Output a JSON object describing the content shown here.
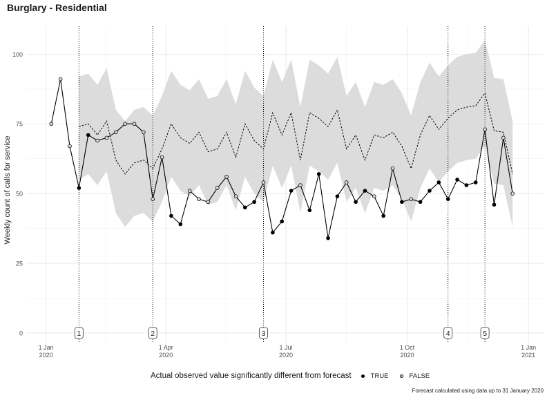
{
  "chart_data": {
    "type": "line",
    "title": "Burglary - Residential",
    "ylabel": "Weekly count of calls for service",
    "xlabel": "",
    "ylim": [
      0,
      110
    ],
    "y_ticks": [
      0,
      25,
      50,
      75,
      100
    ],
    "x_ticks": [
      {
        "date": "2020-01-01",
        "label1": "1 Jan",
        "label2": "2020"
      },
      {
        "date": "2020-04-01",
        "label1": "1 Apr",
        "label2": "2020"
      },
      {
        "date": "2020-07-01",
        "label1": "1 Jul",
        "label2": "2020"
      },
      {
        "date": "2020-10-01",
        "label1": "1 Oct",
        "label2": "2020"
      },
      {
        "date": "2021-01-01",
        "label1": "1 Jan",
        "label2": "2021"
      }
    ],
    "xlim": [
      "2019-12-17",
      "2021-01-13"
    ],
    "grid": true,
    "actual": {
      "dates": [
        "2020-01-05",
        "2020-01-12",
        "2020-01-19",
        "2020-01-26",
        "2020-02-02",
        "2020-02-09",
        "2020-02-16",
        "2020-02-23",
        "2020-03-01",
        "2020-03-08",
        "2020-03-15",
        "2020-03-22",
        "2020-03-29",
        "2020-04-05",
        "2020-04-12",
        "2020-04-19",
        "2020-04-26",
        "2020-05-03",
        "2020-05-10",
        "2020-05-17",
        "2020-05-24",
        "2020-05-31",
        "2020-06-07",
        "2020-06-14",
        "2020-06-21",
        "2020-06-28",
        "2020-07-05",
        "2020-07-12",
        "2020-07-19",
        "2020-07-26",
        "2020-08-02",
        "2020-08-09",
        "2020-08-16",
        "2020-08-23",
        "2020-08-30",
        "2020-09-06",
        "2020-09-13",
        "2020-09-20",
        "2020-09-27",
        "2020-10-04",
        "2020-10-11",
        "2020-10-18",
        "2020-10-25",
        "2020-11-01",
        "2020-11-08",
        "2020-11-15",
        "2020-11-22",
        "2020-11-29",
        "2020-12-06",
        "2020-12-13",
        "2020-12-20"
      ],
      "values": [
        75,
        91,
        67,
        52,
        71,
        69,
        70,
        72,
        75,
        75,
        72,
        48,
        63,
        42,
        39,
        51,
        48,
        47,
        52,
        56,
        49,
        45,
        47,
        54,
        36,
        40,
        51,
        53,
        44,
        57,
        34,
        49,
        54,
        47,
        51,
        49,
        42,
        59,
        47,
        48,
        47,
        51,
        54,
        48,
        55,
        53,
        54,
        73,
        46,
        70,
        50
      ],
      "significant": [
        false,
        false,
        false,
        true,
        true,
        false,
        false,
        false,
        false,
        false,
        false,
        false,
        false,
        true,
        true,
        false,
        false,
        false,
        false,
        false,
        false,
        true,
        true,
        false,
        true,
        true,
        true,
        false,
        true,
        true,
        true,
        true,
        false,
        true,
        true,
        false,
        true,
        false,
        true,
        false,
        true,
        true,
        true,
        true,
        true,
        true,
        true,
        false,
        true,
        false,
        false
      ]
    },
    "forecast": {
      "dates": [
        "2020-01-26",
        "2020-02-02",
        "2020-02-09",
        "2020-02-16",
        "2020-02-23",
        "2020-03-01",
        "2020-03-08",
        "2020-03-15",
        "2020-03-22",
        "2020-03-29",
        "2020-04-05",
        "2020-04-12",
        "2020-04-19",
        "2020-04-26",
        "2020-05-03",
        "2020-05-10",
        "2020-05-17",
        "2020-05-24",
        "2020-05-31",
        "2020-06-07",
        "2020-06-14",
        "2020-06-21",
        "2020-06-28",
        "2020-07-05",
        "2020-07-12",
        "2020-07-19",
        "2020-07-26",
        "2020-08-02",
        "2020-08-09",
        "2020-08-16",
        "2020-08-23",
        "2020-08-30",
        "2020-09-06",
        "2020-09-13",
        "2020-09-20",
        "2020-09-27",
        "2020-10-04",
        "2020-10-11",
        "2020-10-18",
        "2020-10-25",
        "2020-11-01",
        "2020-11-08",
        "2020-11-15",
        "2020-11-22",
        "2020-11-29",
        "2020-12-06",
        "2020-12-13",
        "2020-12-20"
      ],
      "values": [
        74,
        75,
        71,
        76,
        62,
        57,
        61,
        62,
        59,
        66,
        75,
        70,
        68,
        72,
        65,
        66,
        72,
        63,
        75,
        69,
        66,
        79,
        71,
        79,
        62,
        79,
        77,
        74,
        80,
        66,
        71,
        62,
        71,
        70,
        72,
        67,
        59,
        71,
        78,
        73,
        77,
        80,
        81,
        81.5,
        86,
        72.5,
        72,
        57
      ],
      "lower": [
        55,
        57,
        53,
        58,
        43,
        38,
        42,
        43,
        40,
        47,
        56,
        51,
        49,
        53,
        46,
        47,
        53,
        44,
        56,
        50,
        47,
        60,
        52,
        60,
        43,
        60,
        58,
        55,
        61,
        47,
        52,
        43,
        52,
        51,
        53,
        48,
        40,
        52,
        59,
        54,
        58,
        61,
        62,
        62.5,
        67,
        53.5,
        53,
        38
      ],
      "upper": [
        92,
        93,
        89,
        95,
        80,
        76,
        80,
        81,
        78,
        85,
        94,
        89,
        87,
        91,
        84,
        85,
        91,
        82,
        94,
        88,
        85,
        98,
        90,
        98,
        81,
        98,
        96,
        93,
        99,
        85,
        90,
        81,
        90,
        89,
        91,
        86,
        78,
        90,
        97,
        92,
        96,
        99,
        100,
        100.5,
        105,
        91.5,
        91,
        76
      ]
    },
    "events": [
      {
        "date": "2020-01-26",
        "label": "1"
      },
      {
        "date": "2020-03-22",
        "label": "2"
      },
      {
        "date": "2020-06-14",
        "label": "3"
      },
      {
        "date": "2020-11-01",
        "label": "4"
      },
      {
        "date": "2020-11-29",
        "label": "5"
      }
    ],
    "legend": {
      "title": "Actual observed value significantly different from forecast",
      "items": [
        {
          "label": "TRUE",
          "fill": "#000000"
        },
        {
          "label": "FALSE",
          "fill": "#d9d9d9"
        }
      ],
      "position": "bottom"
    },
    "caption": "Forecast calculated using data up to 31 January 2020",
    "colors": {
      "band": "#dcdcdc",
      "line": "#000000",
      "grid_major": "#e3e3e3",
      "grid_minor": "#f1f1f1"
    }
  }
}
